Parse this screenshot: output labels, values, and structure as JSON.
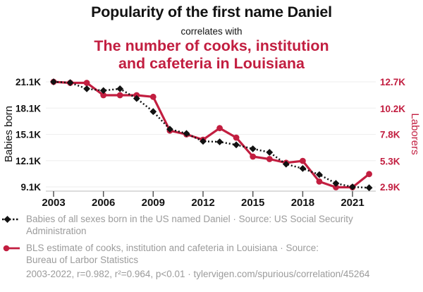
{
  "header": {
    "title": "Popularity of the first name Daniel",
    "connector": "correlates with",
    "subtitle_lines": [
      "The number of cooks, institution",
      "and cafeteria in Louisiana"
    ]
  },
  "colors": {
    "accent_red": "#C21E40",
    "series_black": "#121212",
    "legend_gray": "#9b9b9b",
    "gridline": "#eeeeee",
    "axis_line": "#c8c8c8",
    "tick_mark": "#555555"
  },
  "chart_data": {
    "type": "line",
    "title": "Popularity of the first name Daniel correlates with the number of cooks, institution and cafeteria in Louisiana",
    "x": [
      2003,
      2004,
      2005,
      2006,
      2007,
      2008,
      2009,
      2010,
      2011,
      2012,
      2013,
      2014,
      2015,
      2016,
      2017,
      2018,
      2019,
      2020,
      2021,
      2022
    ],
    "series": [
      {
        "name": "Babies of all sexes born in the US named Daniel",
        "axis": "left",
        "marker": "diamond",
        "line_style": "dotted",
        "color": "#121212",
        "values": [
          21100,
          21000,
          20300,
          20100,
          20300,
          19200,
          17700,
          15700,
          15200,
          14300,
          14250,
          13900,
          13450,
          13050,
          11700,
          11200,
          10500,
          9500,
          9100,
          9000
        ]
      },
      {
        "name": "BLS estimate of cooks, institution and cafeteria in Louisiana",
        "axis": "right",
        "marker": "circle",
        "line_style": "solid",
        "color": "#C21E40",
        "values": [
          12700,
          12600,
          12600,
          11450,
          11450,
          11450,
          11300,
          8150,
          7800,
          7300,
          8380,
          7500,
          5730,
          5500,
          5150,
          5330,
          3400,
          2870,
          2870,
          4100
        ]
      }
    ],
    "left_axis": {
      "label": "Babies born",
      "ticks": [
        "21.1K",
        "18.1K",
        "15.1K",
        "12.1K",
        "9.1K"
      ],
      "tick_values": [
        21100,
        18100,
        15100,
        12100,
        9100
      ],
      "range": [
        9100,
        21100
      ]
    },
    "right_axis": {
      "label": "Laborers",
      "ticks": [
        "12.7K",
        "10.2K",
        "7.8K",
        "5.3K",
        "2.9K"
      ],
      "tick_values": [
        12700,
        10200,
        7800,
        5300,
        2900
      ],
      "range": [
        2900,
        12700
      ]
    },
    "x_axis": {
      "ticks": [
        2003,
        2006,
        2009,
        2012,
        2015,
        2018,
        2021
      ],
      "range": [
        2003,
        2022
      ]
    },
    "grid": "horizontal",
    "legend_position": "bottom"
  },
  "legend": {
    "rows": [
      {
        "lines": [
          "Babies of all sexes born in the US named Daniel · Source: US Social Security",
          "Administration"
        ]
      },
      {
        "lines": [
          "BLS estimate of cooks, institution and cafeteria in Louisiana · Source:",
          "Bureau of Larbor Statistics"
        ]
      }
    ],
    "footnote": "2003-2022, r=0.982, r²=0.964, p<0.01 · tylervigen.com/spurious/correlation/45264"
  }
}
